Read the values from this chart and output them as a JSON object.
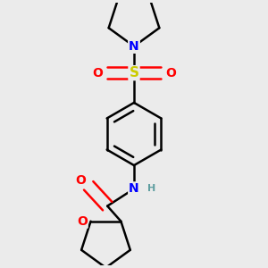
{
  "bg_color": "#ebebeb",
  "atom_colors": {
    "N": "#0000ff",
    "O": "#ff0000",
    "S": "#cccc00",
    "C": "#000000",
    "H": "#5f9ea0"
  },
  "bond_color": "#000000",
  "bond_width": 1.8,
  "dbo": 0.018
}
